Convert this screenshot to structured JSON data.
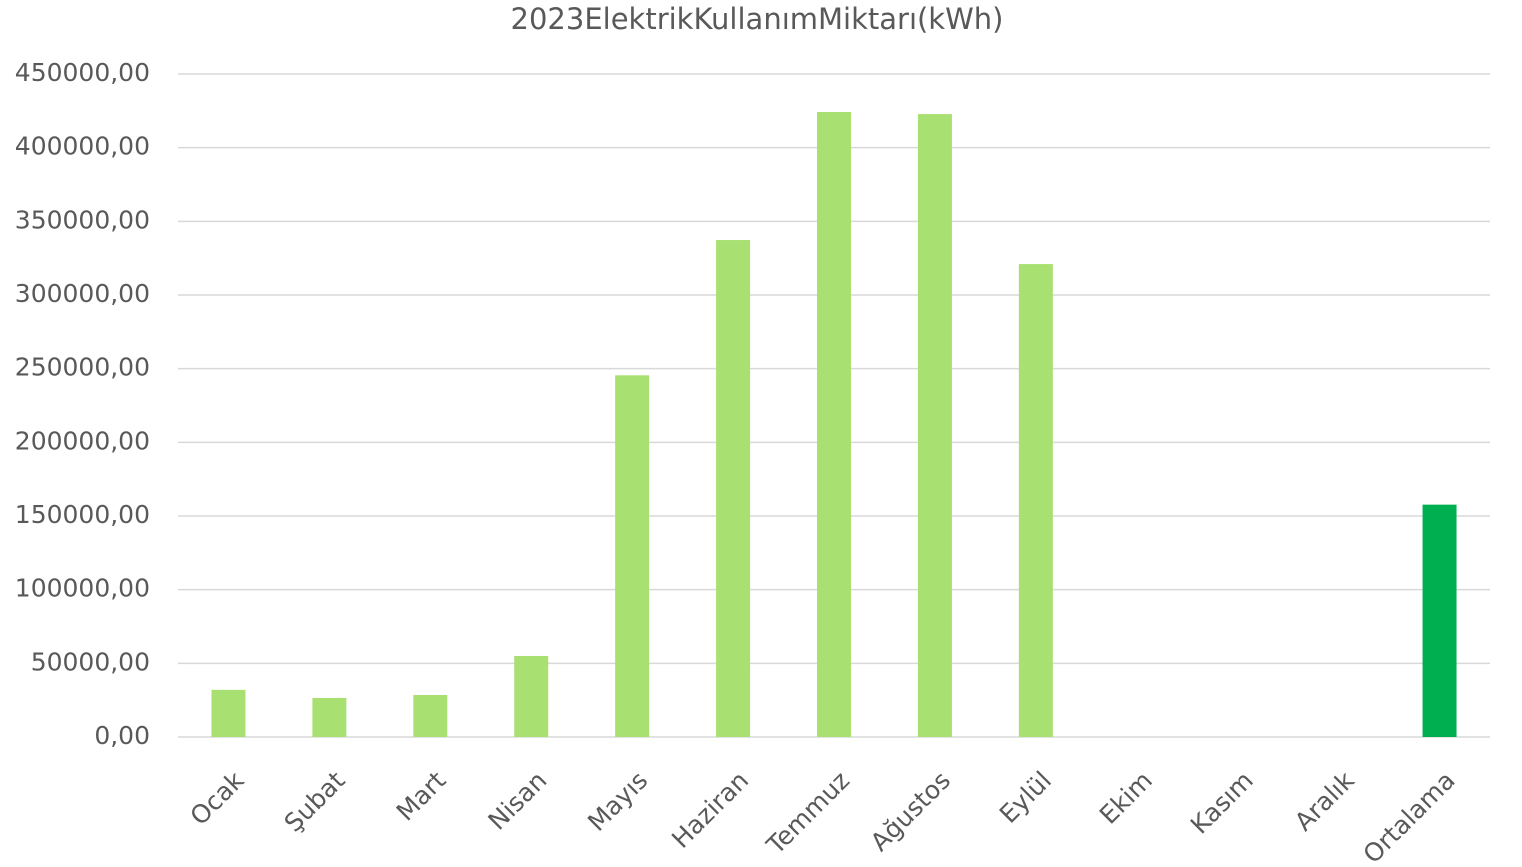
{
  "chart_data": {
    "type": "bar",
    "title": "2023ElektrikKullanımMiktarı(kWh)",
    "categories": [
      "Ocak",
      "Şubat",
      "Mart",
      "Nisan",
      "Mayıs",
      "Haziran",
      "Temmuz",
      "Ağustos",
      "Eylül",
      "Ekim",
      "Kasım",
      "Aralık",
      "Ortalama"
    ],
    "values": [
      32000,
      26500,
      28500,
      55000,
      245500,
      337300,
      424200,
      422800,
      321000,
      0,
      0,
      0,
      157700
    ],
    "colors": [
      "#a9e072",
      "#a9e072",
      "#a9e072",
      "#a9e072",
      "#a9e072",
      "#a9e072",
      "#a9e072",
      "#a9e072",
      "#a9e072",
      "#a9e072",
      "#a9e072",
      "#a9e072",
      "#00b050"
    ],
    "ylim": [
      0,
      450000
    ],
    "yticks": [
      {
        "value": 0,
        "label": "0,00"
      },
      {
        "value": 50000,
        "label": "50000,00"
      },
      {
        "value": 100000,
        "label": "100000,00"
      },
      {
        "value": 150000,
        "label": "150000,00"
      },
      {
        "value": 200000,
        "label": "200000,00"
      },
      {
        "value": 250000,
        "label": "250000,00"
      },
      {
        "value": 300000,
        "label": "300000,00"
      },
      {
        "value": 350000,
        "label": "350000,00"
      },
      {
        "value": 400000,
        "label": "400000,00"
      },
      {
        "value": 450000,
        "label": "450000,00"
      }
    ],
    "grid": true
  }
}
